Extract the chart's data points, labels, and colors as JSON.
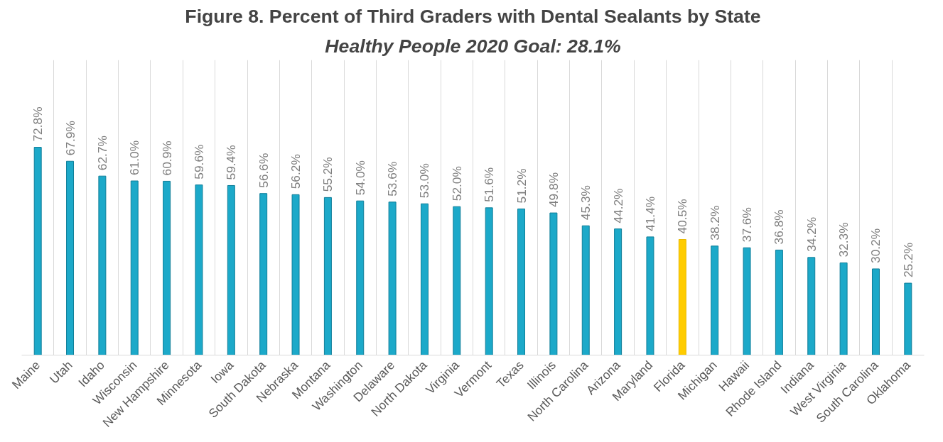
{
  "chart_data": {
    "type": "bar",
    "title": "Figure 8. Percent of Third Graders with Dental Sealants by State",
    "subtitle": "Healthy People 2020 Goal: 28.1%",
    "categories": [
      "Maine",
      "Utah",
      "Idaho",
      "Wisconsin",
      "New Hampshire",
      "Minnesota",
      "Iowa",
      "South Dakota",
      "Nebraska",
      "Montana",
      "Washington",
      "Delaware",
      "North Dakota",
      "Virginia",
      "Vermont",
      "Texas",
      "Illinois",
      "North Carolina",
      "Arizona",
      "Maryland",
      "Florida",
      "Michigan",
      "Hawaii",
      "Rhode Island",
      "Indiana",
      "West Virginia",
      "South Carolina",
      "Oklahoma"
    ],
    "values": [
      72.8,
      67.9,
      62.7,
      61.0,
      60.9,
      59.6,
      59.4,
      56.6,
      56.2,
      55.2,
      54.0,
      53.6,
      53.0,
      52.0,
      51.6,
      51.2,
      49.8,
      45.3,
      44.2,
      41.4,
      40.5,
      38.2,
      37.6,
      36.8,
      34.2,
      32.3,
      30.2,
      25.2
    ],
    "value_labels": [
      "72.8%",
      "67.9%",
      "62.7%",
      "61.0%",
      "60.9%",
      "59.6%",
      "59.4%",
      "56.6%",
      "56.2%",
      "55.2%",
      "54.0%",
      "53.6%",
      "53.0%",
      "52.0%",
      "51.6%",
      "51.2%",
      "49.8%",
      "45.3%",
      "44.2%",
      "41.4%",
      "40.5%",
      "38.2%",
      "37.6%",
      "36.8%",
      "34.2%",
      "32.3%",
      "30.2%",
      "25.2%"
    ],
    "colors": [
      "#1ca9c9",
      "#1ca9c9",
      "#1ca9c9",
      "#1ca9c9",
      "#1ca9c9",
      "#1ca9c9",
      "#1ca9c9",
      "#1ca9c9",
      "#1ca9c9",
      "#1ca9c9",
      "#1ca9c9",
      "#1ca9c9",
      "#1ca9c9",
      "#1ca9c9",
      "#1ca9c9",
      "#1ca9c9",
      "#1ca9c9",
      "#1ca9c9",
      "#1ca9c9",
      "#1ca9c9",
      "#ffcc00",
      "#1ca9c9",
      "#1ca9c9",
      "#1ca9c9",
      "#1ca9c9",
      "#1ca9c9",
      "#1ca9c9",
      "#1ca9c9"
    ],
    "grid": "x"
  }
}
